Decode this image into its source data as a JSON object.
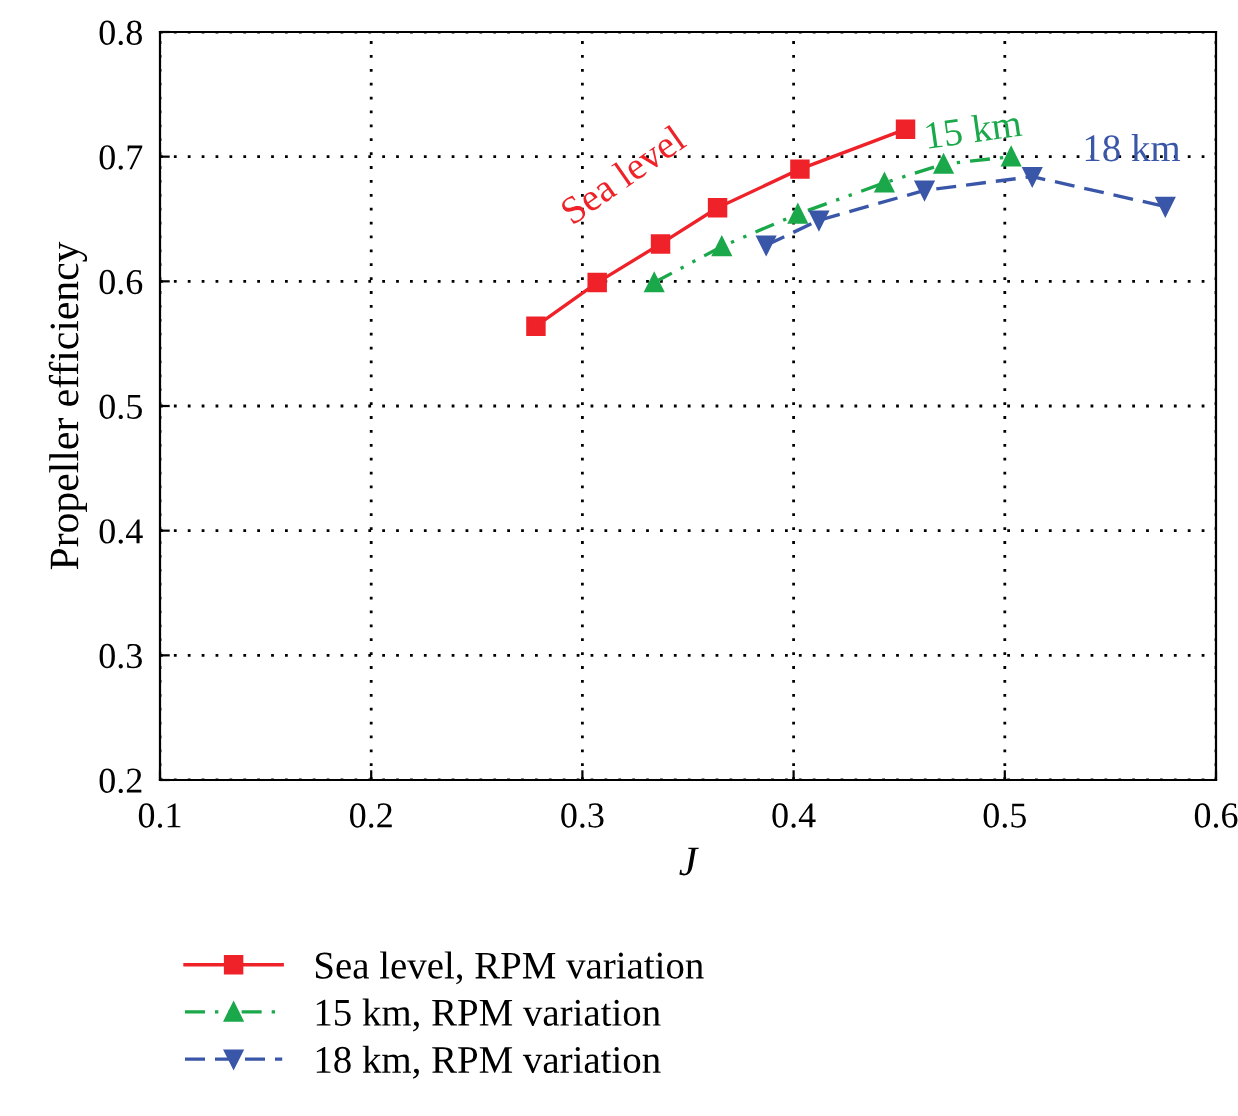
{
  "chart_data": {
    "type": "line",
    "xlabel": "J",
    "ylabel": "Propeller efficiency",
    "xlim": [
      0.1,
      0.6
    ],
    "xticks": [
      0.1,
      0.2,
      0.3,
      0.4,
      0.5,
      0.6
    ],
    "ylim": [
      0.2,
      0.8
    ],
    "yticks": [
      0.2,
      0.3,
      0.4,
      0.5,
      0.6,
      0.7,
      0.8
    ],
    "grid": true,
    "legend": "bottom",
    "series": [
      {
        "name": "Sea level, RPM variation",
        "color": "#ee2228",
        "marker": "square",
        "line_style": "solid",
        "x": [
          0.278,
          0.307,
          0.337,
          0.364,
          0.403,
          0.453
        ],
        "values": [
          0.564,
          0.599,
          0.63,
          0.659,
          0.69,
          0.722
        ]
      },
      {
        "name": "15 km, RPM variation",
        "color": "#1aa84a",
        "marker": "triangle",
        "line_style": "dashdot",
        "x": [
          0.334,
          0.366,
          0.402,
          0.443,
          0.471,
          0.503
        ],
        "values": [
          0.599,
          0.628,
          0.654,
          0.679,
          0.694,
          0.7
        ]
      },
      {
        "name": "18 km, RPM variation",
        "color": "#3a56a8",
        "marker": "triangle_down",
        "line_style": "dashed",
        "x": [
          0.387,
          0.412,
          0.462,
          0.513,
          0.576
        ],
        "values": [
          0.629,
          0.649,
          0.673,
          0.684,
          0.66
        ]
      }
    ],
    "annotations": [
      "Sea level",
      "15 km",
      "18 km"
    ]
  }
}
